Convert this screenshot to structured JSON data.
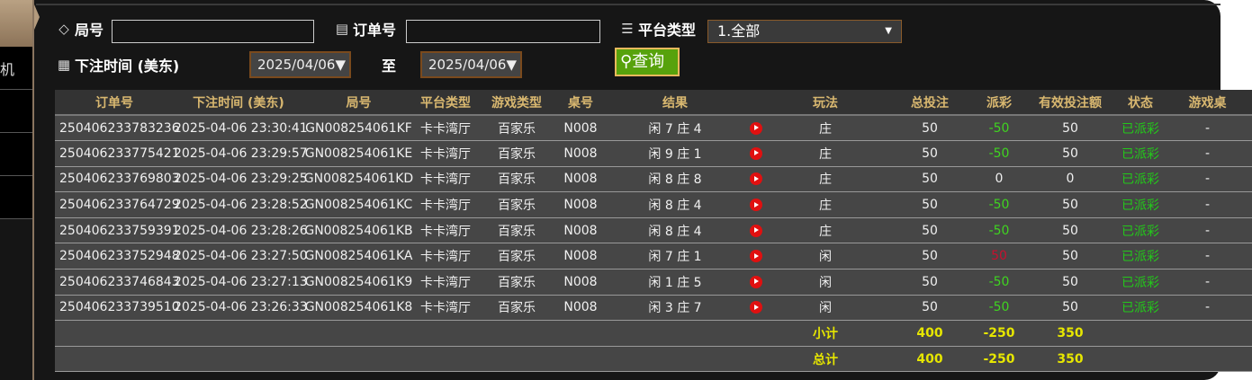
{
  "sidebar": {
    "partial_label": "机"
  },
  "filters": {
    "round_label": "局号",
    "round_value": "",
    "order_label": "订单号",
    "order_value": "",
    "platform_label": "平台类型",
    "platform_value": "1.全部",
    "time_label": "下注时间 (美东)",
    "date_from": "2025/04/06▼",
    "to_label": "至",
    "date_to": "2025/04/06▼",
    "query_label": "查询"
  },
  "table": {
    "headers": [
      "订单号",
      "下注时间 (美东)",
      "局号",
      "平台类型",
      "游戏类型",
      "桌号",
      "结果",
      "",
      "玩法",
      "总投注",
      "派彩",
      "有效投注额",
      "状态",
      "游戏桌"
    ],
    "rows": [
      [
        "250406233783236",
        "2025-04-06 23:30:41",
        "GN008254061KF",
        "卡卡湾厅",
        "百家乐",
        "N008",
        "闲 7 庄 4",
        "",
        "庄",
        "50",
        "-50",
        "50",
        "已派彩",
        "-"
      ],
      [
        "250406233775421",
        "2025-04-06 23:29:57",
        "GN008254061KE",
        "卡卡湾厅",
        "百家乐",
        "N008",
        "闲 9 庄 1",
        "",
        "庄",
        "50",
        "-50",
        "50",
        "已派彩",
        "-"
      ],
      [
        "250406233769803",
        "2025-04-06 23:29:25",
        "GN008254061KD",
        "卡卡湾厅",
        "百家乐",
        "N008",
        "闲 8 庄 8",
        "",
        "庄",
        "50",
        "0",
        "0",
        "已派彩",
        "-"
      ],
      [
        "250406233764729",
        "2025-04-06 23:28:52",
        "GN008254061KC",
        "卡卡湾厅",
        "百家乐",
        "N008",
        "闲 8 庄 4",
        "",
        "庄",
        "50",
        "-50",
        "50",
        "已派彩",
        "-"
      ],
      [
        "250406233759391",
        "2025-04-06 23:28:26",
        "GN008254061KB",
        "卡卡湾厅",
        "百家乐",
        "N008",
        "闲 8 庄 4",
        "",
        "庄",
        "50",
        "-50",
        "50",
        "已派彩",
        "-"
      ],
      [
        "250406233752948",
        "2025-04-06 23:27:50",
        "GN008254061KA",
        "卡卡湾厅",
        "百家乐",
        "N008",
        "闲 7 庄 1",
        "",
        "闲",
        "50",
        "50",
        "50",
        "已派彩",
        "-"
      ],
      [
        "250406233746843",
        "2025-04-06 23:27:13",
        "GN008254061K9",
        "卡卡湾厅",
        "百家乐",
        "N008",
        "闲 1 庄 5",
        "",
        "闲",
        "50",
        "-50",
        "50",
        "已派彩",
        "-"
      ],
      [
        "250406233739510",
        "2025-04-06 23:26:33",
        "GN008254061K8",
        "卡卡湾厅",
        "百家乐",
        "N008",
        "闲 3 庄 7",
        "",
        "闲",
        "50",
        "-50",
        "50",
        "已派彩",
        "-"
      ]
    ],
    "subtotal": {
      "label": "小计",
      "bet": "400",
      "payout": "-250",
      "valid": "350"
    },
    "total": {
      "label": "总计",
      "bet": "400",
      "payout": "-250",
      "valid": "350"
    }
  },
  "colors": {
    "accent": "#d9b870",
    "win": "#3fd420",
    "loss": "#c8102e",
    "status": "#23c81a",
    "sum": "#e6e600",
    "query_bg": "#57a20c"
  }
}
